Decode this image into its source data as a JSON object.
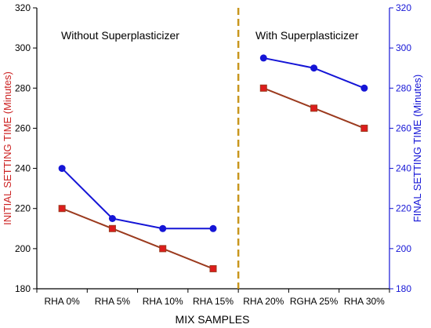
{
  "chart_data": {
    "type": "line",
    "xlabel": "MIX SAMPLES",
    "ylabel_left": "INITIAL SETTING TIME (Minutes)",
    "ylabel_right": "FINAL SETTING TIME (Minutes)",
    "categories": [
      "RHA 0%",
      "RHA 5%",
      "RHA 10%",
      "RHA 15%",
      "RHA 20%",
      "RGHA 25%",
      "RHA 30%"
    ],
    "ylim": [
      180,
      320
    ],
    "yticks": [
      180,
      200,
      220,
      240,
      260,
      280,
      300,
      320
    ],
    "grid": false,
    "divider_after_index": 3,
    "annotations": {
      "left": "Without Superplasticizer",
      "right": "With Superplasticizer"
    },
    "series": [
      {
        "key": "initial",
        "axis": "left",
        "marker": "square",
        "color": "#9b3a1e",
        "marker_color": "#dd1c1c",
        "segments": [
          {
            "x_index": [
              0,
              1,
              2,
              3
            ],
            "values": [
              220,
              210,
              200,
              190
            ]
          },
          {
            "x_index": [
              4,
              5,
              6
            ],
            "values": [
              280,
              270,
              260
            ]
          }
        ]
      },
      {
        "key": "final",
        "axis": "right",
        "marker": "circle",
        "color": "#1515d6",
        "marker_color": "#1515d6",
        "segments": [
          {
            "x_index": [
              0,
              1,
              2,
              3
            ],
            "values": [
              240,
              215,
              210,
              210
            ]
          },
          {
            "x_index": [
              4,
              5,
              6
            ],
            "values": [
              295,
              290,
              280
            ]
          }
        ]
      }
    ],
    "colors": {
      "left_axis_label": "#cc2222",
      "right_axis_label": "#1515d6",
      "right_axis_line": "#1515d6",
      "divider": "#c8961e",
      "text": "#000000"
    }
  }
}
